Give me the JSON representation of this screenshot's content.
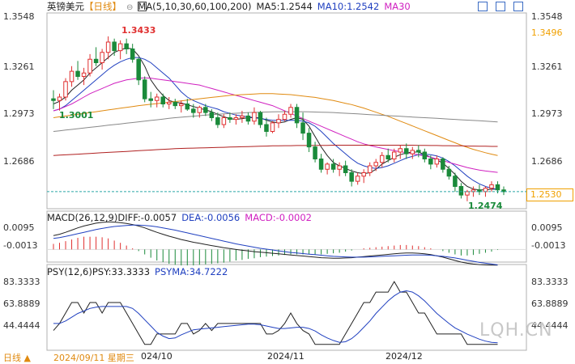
{
  "header": {
    "symbol": "英镑美元",
    "period_tag": "【日线】",
    "ma_label": "MA(5,10,30,60,100,200)",
    "ma5": "MA5:1.2544",
    "ma10": "MA10:1.2542",
    "ma30": "MA30"
  },
  "price_axis": {
    "labels": [
      "1.3548",
      "1.3261",
      "1.2973",
      "1.2686"
    ],
    "right_labels": [
      "1.3548",
      "1.3496",
      "1.3261",
      "1.2973",
      "1.2686"
    ],
    "current": "1.2530"
  },
  "annotations": {
    "high": "1.3433",
    "low_left": "1.3001",
    "low_right": "1.2474"
  },
  "macd": {
    "title": "MACD(26,12,9)",
    "dif": "DIFF:-0.0057",
    "dea": "DEA:-0.0056",
    "macd": "MACD:-0.0002",
    "axis": [
      "0.0095",
      "-0.0013"
    ]
  },
  "psy": {
    "title": "PSY(12,6)",
    "psy": "PSY:33.3333",
    "psyma": "PSYMA:34.7222",
    "axis": [
      "83.3333",
      "63.8889",
      "44.4444"
    ]
  },
  "bottom": {
    "period": "日线",
    "date": "2024/09/11 星期三",
    "month1": "024/10",
    "month2": "2024/11",
    "month3": "2024/12"
  },
  "watermark": "LQH.CN",
  "colors": {
    "up": "#e03030",
    "down": "#1a8a3a",
    "ma5": "#222222",
    "ma10": "#2040c0",
    "ma30": "#d020c0",
    "ma60": "#e08a10",
    "ma100": "#888888",
    "ma200": "#b02020"
  },
  "chart_data": {
    "type": "candlestick",
    "ylim": [
      1.244,
      1.356
    ],
    "candles": [
      [
        1.307,
        1.312,
        1.301,
        1.306
      ],
      [
        1.306,
        1.31,
        1.3001,
        1.308
      ],
      [
        1.308,
        1.319,
        1.306,
        1.317
      ],
      [
        1.317,
        1.326,
        1.314,
        1.323
      ],
      [
        1.323,
        1.329,
        1.318,
        1.32
      ],
      [
        1.32,
        1.325,
        1.315,
        1.322
      ],
      [
        1.322,
        1.333,
        1.32,
        1.33
      ],
      [
        1.33,
        1.337,
        1.326,
        1.328
      ],
      [
        1.328,
        1.336,
        1.324,
        1.334
      ],
      [
        1.334,
        1.3433,
        1.33,
        1.34
      ],
      [
        1.34,
        1.342,
        1.332,
        1.335
      ],
      [
        1.335,
        1.341,
        1.33,
        1.339
      ],
      [
        1.339,
        1.342,
        1.333,
        1.336
      ],
      [
        1.336,
        1.339,
        1.328,
        1.33
      ],
      [
        1.33,
        1.331,
        1.315,
        1.318
      ],
      [
        1.318,
        1.32,
        1.305,
        1.307
      ],
      [
        1.307,
        1.311,
        1.302,
        1.306
      ],
      [
        1.306,
        1.31,
        1.302,
        1.308
      ],
      [
        1.308,
        1.31,
        1.302,
        1.304
      ],
      [
        1.304,
        1.308,
        1.301,
        1.305
      ],
      [
        1.305,
        1.307,
        1.301,
        1.303
      ],
      [
        1.303,
        1.306,
        1.299,
        1.304
      ],
      [
        1.304,
        1.307,
        1.3,
        1.301
      ],
      [
        1.301,
        1.304,
        1.296,
        1.299
      ],
      [
        1.299,
        1.303,
        1.296,
        1.302
      ],
      [
        1.302,
        1.304,
        1.297,
        1.299
      ],
      [
        1.299,
        1.301,
        1.294,
        1.296
      ],
      [
        1.296,
        1.299,
        1.29,
        1.292
      ],
      [
        1.292,
        1.298,
        1.29,
        1.296
      ],
      [
        1.296,
        1.299,
        1.293,
        1.295
      ],
      [
        1.295,
        1.298,
        1.292,
        1.296
      ],
      [
        1.296,
        1.3,
        1.293,
        1.297
      ],
      [
        1.297,
        1.299,
        1.292,
        1.294
      ],
      [
        1.294,
        1.302,
        1.292,
        1.299
      ],
      [
        1.299,
        1.3,
        1.29,
        1.292
      ],
      [
        1.292,
        1.296,
        1.285,
        1.288
      ],
      [
        1.288,
        1.294,
        1.287,
        1.293
      ],
      [
        1.293,
        1.298,
        1.29,
        1.295
      ],
      [
        1.295,
        1.3,
        1.294,
        1.298
      ],
      [
        1.298,
        1.304,
        1.296,
        1.302
      ],
      [
        1.302,
        1.304,
        1.29,
        1.293
      ],
      [
        1.293,
        1.299,
        1.283,
        1.287
      ],
      [
        1.287,
        1.29,
        1.276,
        1.279
      ],
      [
        1.279,
        1.282,
        1.27,
        1.272
      ],
      [
        1.272,
        1.275,
        1.264,
        1.266
      ],
      [
        1.266,
        1.27,
        1.263,
        1.269
      ],
      [
        1.269,
        1.272,
        1.264,
        1.266
      ],
      [
        1.266,
        1.27,
        1.262,
        1.268
      ],
      [
        1.268,
        1.271,
        1.262,
        1.264
      ],
      [
        1.264,
        1.266,
        1.256,
        1.259
      ],
      [
        1.259,
        1.264,
        1.257,
        1.262
      ],
      [
        1.262,
        1.266,
        1.258,
        1.264
      ],
      [
        1.264,
        1.27,
        1.262,
        1.268
      ],
      [
        1.268,
        1.272,
        1.265,
        1.27
      ],
      [
        1.27,
        1.276,
        1.267,
        1.274
      ],
      [
        1.274,
        1.278,
        1.27,
        1.272
      ],
      [
        1.272,
        1.278,
        1.27,
        1.276
      ],
      [
        1.276,
        1.28,
        1.272,
        1.278
      ],
      [
        1.278,
        1.281,
        1.272,
        1.275
      ],
      [
        1.275,
        1.279,
        1.272,
        1.277
      ],
      [
        1.277,
        1.28,
        1.273,
        1.276
      ],
      [
        1.276,
        1.278,
        1.27,
        1.272
      ],
      [
        1.272,
        1.274,
        1.266,
        1.269
      ],
      [
        1.269,
        1.274,
        1.267,
        1.272
      ],
      [
        1.272,
        1.273,
        1.264,
        1.266
      ],
      [
        1.266,
        1.268,
        1.26,
        1.262
      ],
      [
        1.262,
        1.264,
        1.253,
        1.256
      ],
      [
        1.256,
        1.258,
        1.249,
        1.251
      ],
      [
        1.251,
        1.254,
        1.2474,
        1.253
      ],
      [
        1.253,
        1.256,
        1.25,
        1.254
      ],
      [
        1.254,
        1.257,
        1.251,
        1.253
      ],
      [
        1.253,
        1.256,
        1.25,
        1.255
      ],
      [
        1.255,
        1.259,
        1.253,
        1.257
      ],
      [
        1.257,
        1.259,
        1.252,
        1.254
      ],
      [
        1.254,
        1.256,
        1.251,
        1.253
      ]
    ],
    "ma": [
      {
        "key": "ma5",
        "values": [
          1.304,
          1.3055,
          1.308,
          1.312,
          1.315,
          1.318,
          1.322,
          1.325,
          1.328,
          1.331,
          1.334,
          1.3355,
          1.3365,
          1.336,
          1.332,
          1.326,
          1.318,
          1.313,
          1.309,
          1.306,
          1.305,
          1.3045,
          1.3035,
          1.3025,
          1.3015,
          1.3005,
          1.2995,
          1.298,
          1.2965,
          1.2955,
          1.295,
          1.2955,
          1.296,
          1.296,
          1.296,
          1.2945,
          1.2935,
          1.293,
          1.2935,
          1.295,
          1.296,
          1.295,
          1.291,
          1.285,
          1.279,
          1.274,
          1.27,
          1.268,
          1.2665,
          1.265,
          1.264,
          1.2635,
          1.264,
          1.266,
          1.269,
          1.271,
          1.273,
          1.2745,
          1.2755,
          1.276,
          1.276,
          1.2745,
          1.273,
          1.2715,
          1.2695,
          1.2665,
          1.263,
          1.259,
          1.256,
          1.2545,
          1.254,
          1.254,
          1.2545,
          1.2544
        ]
      },
      {
        "key": "ma10",
        "values": [
          1.3,
          1.301,
          1.303,
          1.306,
          1.309,
          1.312,
          1.315,
          1.318,
          1.321,
          1.324,
          1.3265,
          1.3285,
          1.33,
          1.331,
          1.331,
          1.33,
          1.328,
          1.325,
          1.322,
          1.319,
          1.315,
          1.311,
          1.308,
          1.306,
          1.3045,
          1.303,
          1.302,
          1.301,
          1.2995,
          1.2985,
          1.2975,
          1.297,
          1.2965,
          1.296,
          1.2955,
          1.295,
          1.2945,
          1.2945,
          1.2945,
          1.2945,
          1.2945,
          1.294,
          1.293,
          1.291,
          1.288,
          1.2845,
          1.281,
          1.278,
          1.275,
          1.272,
          1.2695,
          1.268,
          1.267,
          1.2665,
          1.267,
          1.268,
          1.2695,
          1.271,
          1.2725,
          1.2735,
          1.2745,
          1.2748,
          1.2745,
          1.2738,
          1.2725,
          1.2705,
          1.268,
          1.265,
          1.262,
          1.2595,
          1.2575,
          1.256,
          1.255,
          1.2542
        ]
      },
      {
        "key": "ma30",
        "values": [
          1.3,
          1.301,
          1.3025,
          1.304,
          1.306,
          1.308,
          1.31,
          1.3115,
          1.313,
          1.3145,
          1.316,
          1.317,
          1.318,
          1.3185,
          1.319,
          1.3192,
          1.319,
          1.3185,
          1.318,
          1.3175,
          1.317,
          1.3165,
          1.316,
          1.3155,
          1.315,
          1.314,
          1.313,
          1.312,
          1.311,
          1.31,
          1.309,
          1.308,
          1.307,
          1.306,
          1.305,
          1.304,
          1.303,
          1.3015,
          1.3,
          1.2985,
          1.297,
          1.2955,
          1.294,
          1.2925,
          1.291,
          1.2895,
          1.288,
          1.2865,
          1.285,
          1.2835,
          1.282,
          1.2808,
          1.2798,
          1.279,
          1.2782,
          1.2775,
          1.2768,
          1.2762,
          1.2756,
          1.275,
          1.2744,
          1.2738,
          1.273,
          1.272,
          1.271,
          1.27,
          1.269,
          1.268,
          1.267,
          1.2662,
          1.2655,
          1.265,
          1.2646,
          1.2642
        ]
      },
      {
        "key": "ma60",
        "values": [
          1.296,
          1.2965,
          1.297,
          1.2975,
          1.298,
          1.2985,
          1.299,
          1.2995,
          1.3,
          1.3005,
          1.301,
          1.3015,
          1.302,
          1.3025,
          1.303,
          1.3034,
          1.3038,
          1.3042,
          1.3046,
          1.305,
          1.3054,
          1.3058,
          1.3062,
          1.3066,
          1.307,
          1.3074,
          1.3078,
          1.3082,
          1.3086,
          1.309,
          1.3092,
          1.3094,
          1.3096,
          1.3098,
          1.31,
          1.31,
          1.31,
          1.3098,
          1.3096,
          1.3094,
          1.309,
          1.3086,
          1.3082,
          1.3078,
          1.3072,
          1.3066,
          1.306,
          1.3052,
          1.3044,
          1.3036,
          1.3026,
          1.3016,
          1.3004,
          1.2992,
          1.298,
          1.2968,
          1.2954,
          1.294,
          1.2926,
          1.2912,
          1.2898,
          1.2884,
          1.287,
          1.2856,
          1.2842,
          1.2828,
          1.2814,
          1.28,
          1.2788,
          1.2776,
          1.2766,
          1.2756,
          1.2748,
          1.274
        ]
      },
      {
        "key": "ma100",
        "values": [
          1.288,
          1.2884,
          1.2888,
          1.2892,
          1.2896,
          1.29,
          1.2904,
          1.2908,
          1.2912,
          1.2916,
          1.292,
          1.2924,
          1.2928,
          1.2932,
          1.2936,
          1.294,
          1.2944,
          1.2948,
          1.2952,
          1.2956,
          1.296,
          1.2963,
          1.2966,
          1.2969,
          1.2972,
          1.2975,
          1.2978,
          1.298,
          1.2982,
          1.2984,
          1.2986,
          1.2988,
          1.299,
          1.2991,
          1.2992,
          1.2993,
          1.2994,
          1.2995,
          1.2995,
          1.2995,
          1.2995,
          1.2995,
          1.2994,
          1.2993,
          1.2992,
          1.2991,
          1.299,
          1.2988,
          1.2986,
          1.2984,
          1.2982,
          1.298,
          1.2978,
          1.2976,
          1.2974,
          1.2972,
          1.297,
          1.2968,
          1.2966,
          1.2964,
          1.2962,
          1.296,
          1.2958,
          1.2956,
          1.2954,
          1.2952,
          1.295,
          1.2948,
          1.2946,
          1.2944,
          1.2942,
          1.294,
          1.2938,
          1.2935
        ]
      },
      {
        "key": "ma200",
        "values": [
          1.274,
          1.2742,
          1.2744,
          1.2746,
          1.2748,
          1.275,
          1.2752,
          1.2754,
          1.2756,
          1.2758,
          1.276,
          1.2762,
          1.2764,
          1.2766,
          1.2768,
          1.277,
          1.2772,
          1.2774,
          1.2776,
          1.2778,
          1.278,
          1.2781,
          1.2782,
          1.2783,
          1.2784,
          1.2785,
          1.2786,
          1.2787,
          1.2788,
          1.2789,
          1.279,
          1.2791,
          1.2792,
          1.2793,
          1.2794,
          1.2795,
          1.2796,
          1.2796,
          1.2797,
          1.2797,
          1.2798,
          1.2798,
          1.2798,
          1.2799,
          1.2799,
          1.2799,
          1.28,
          1.28,
          1.28,
          1.28,
          1.28,
          1.28,
          1.28,
          1.28,
          1.28,
          1.28,
          1.28,
          1.28,
          1.28,
          1.28,
          1.2799,
          1.2799,
          1.2798,
          1.2798,
          1.2797,
          1.2797,
          1.2796,
          1.2796,
          1.2795,
          1.2795,
          1.2794,
          1.2794,
          1.2793,
          1.2793
        ]
      }
    ],
    "macd_ylim": [
      -0.004,
      0.013
    ],
    "dif": [
      0.005,
      0.0055,
      0.0062,
      0.007,
      0.0078,
      0.0085,
      0.009,
      0.0095,
      0.0098,
      0.01,
      0.0099,
      0.0097,
      0.0094,
      0.009,
      0.0085,
      0.0078,
      0.007,
      0.0062,
      0.0055,
      0.0048,
      0.0042,
      0.0036,
      0.0031,
      0.0026,
      0.0022,
      0.0018,
      0.0014,
      0.001,
      0.0006,
      0.0003,
      0.0,
      -0.0003,
      -0.0005,
      -0.0008,
      -0.001,
      -0.0012,
      -0.0014,
      -0.0016,
      -0.0018,
      -0.002,
      -0.0022,
      -0.0024,
      -0.0026,
      -0.0028,
      -0.003,
      -0.0031,
      -0.0032,
      -0.0032,
      -0.0031,
      -0.003,
      -0.0028,
      -0.0026,
      -0.0024,
      -0.0022,
      -0.002,
      -0.0018,
      -0.0016,
      -0.0014,
      -0.0013,
      -0.0013,
      -0.0014,
      -0.0016,
      -0.0019,
      -0.0023,
      -0.0028,
      -0.0034,
      -0.004,
      -0.0046,
      -0.005,
      -0.0053,
      -0.0055,
      -0.0056,
      -0.0057,
      -0.0057
    ],
    "dea": [
      0.004,
      0.0043,
      0.0047,
      0.0052,
      0.0057,
      0.0062,
      0.0067,
      0.0072,
      0.0076,
      0.008,
      0.0083,
      0.0085,
      0.0087,
      0.0088,
      0.0088,
      0.0087,
      0.0085,
      0.0082,
      0.0078,
      0.0074,
      0.007,
      0.0065,
      0.006,
      0.0055,
      0.005,
      0.0045,
      0.004,
      0.0035,
      0.003,
      0.0025,
      0.002,
      0.0016,
      0.0012,
      0.0008,
      0.0004,
      0.0001,
      -0.0002,
      -0.0005,
      -0.0008,
      -0.0011,
      -0.0013,
      -0.0015,
      -0.0017,
      -0.0019,
      -0.0021,
      -0.0023,
      -0.0025,
      -0.0026,
      -0.0027,
      -0.0028,
      -0.0028,
      -0.0028,
      -0.0027,
      -0.0026,
      -0.0025,
      -0.0024,
      -0.0023,
      -0.0022,
      -0.0021,
      -0.002,
      -0.002,
      -0.002,
      -0.0021,
      -0.0023,
      -0.0025,
      -0.0028,
      -0.0031,
      -0.0035,
      -0.0039,
      -0.0043,
      -0.0047,
      -0.005,
      -0.0053,
      -0.0056
    ],
    "psy_ylim": [
      30,
      95
    ],
    "psy_line": [
      44.4444,
      50.0,
      58.3333,
      66.6667,
      66.6667,
      58.3333,
      66.6667,
      66.6667,
      58.3333,
      66.6667,
      66.6667,
      66.6667,
      58.3333,
      50.0,
      41.6667,
      33.3333,
      33.3333,
      41.6667,
      41.6667,
      41.6667,
      41.6667,
      50.0,
      50.0,
      41.6667,
      44.4444,
      50.0,
      44.4444,
      50.0,
      50.0,
      50.0,
      50.0,
      50.0,
      50.0,
      50.0,
      50.0,
      41.6667,
      41.6667,
      44.4444,
      50.0,
      58.3333,
      50.0,
      44.4444,
      41.6667,
      33.3333,
      33.3333,
      33.3333,
      33.3333,
      33.3333,
      41.6667,
      50.0,
      58.3333,
      66.6667,
      66.6667,
      75.0,
      75.0,
      75.0,
      83.3333,
      75.0,
      75.0,
      66.6667,
      58.3333,
      58.3333,
      50.0,
      41.6667,
      41.6667,
      41.6667,
      41.6667,
      41.6667,
      33.3333,
      33.3333,
      33.3333,
      33.3333,
      33.3333,
      33.3333
    ],
    "psy_ma": [
      50.0,
      50.0,
      52.0,
      55.0,
      58.0,
      60.0,
      62.0,
      63.0,
      63.5,
      63.5,
      63.5,
      63.5,
      63.5,
      62.0,
      58.0,
      53.0,
      48.0,
      43.0,
      40.0,
      38.0,
      38.5,
      41.0,
      43.0,
      45.0,
      45.5,
      46.0,
      46.5,
      47.0,
      47.5,
      48.0,
      48.5,
      49.0,
      49.5,
      49.5,
      49.0,
      48.0,
      47.0,
      46.0,
      46.0,
      46.5,
      47.0,
      47.0,
      46.0,
      44.0,
      41.0,
      38.5,
      36.5,
      35.0,
      35.5,
      38.0,
      42.0,
      47.0,
      52.0,
      58.0,
      63.0,
      68.0,
      72.0,
      75.0,
      76.0,
      75.0,
      72.0,
      68.0,
      63.0,
      58.0,
      54.0,
      50.0,
      46.5,
      44.0,
      41.5,
      39.5,
      37.5,
      36.0,
      35.0,
      34.7222
    ]
  }
}
